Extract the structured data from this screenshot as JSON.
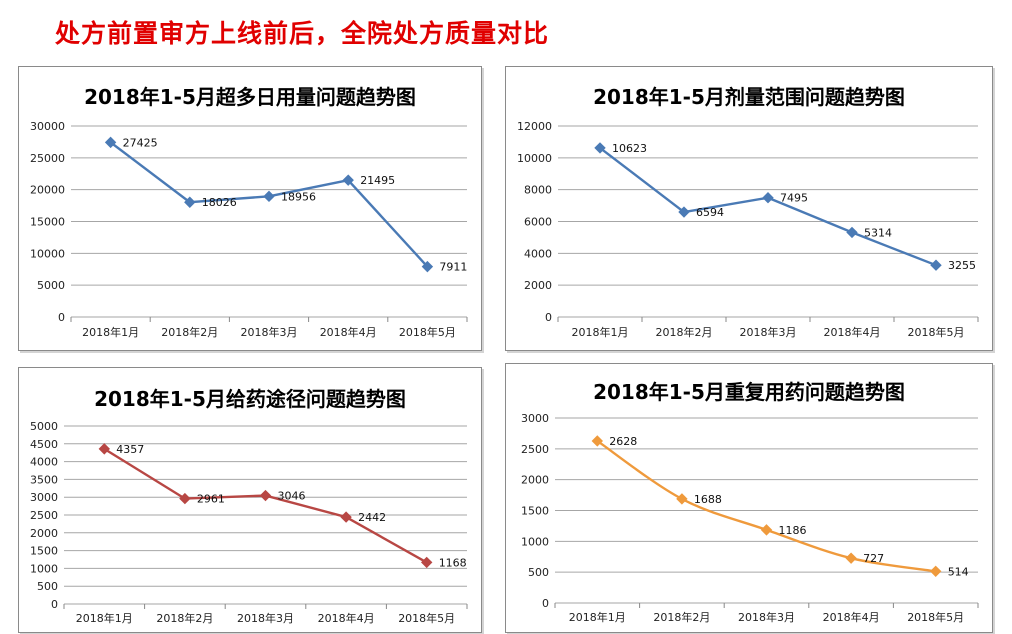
{
  "page": {
    "title": "处方前置审方上线前后，全院处方质量对比"
  },
  "chart_data": [
    {
      "type": "line",
      "title": "2018年1-5月超多日用量问题趋势图",
      "categories": [
        "2018年1月",
        "2018年2月",
        "2018年3月",
        "2018年4月",
        "2018年5月"
      ],
      "values": [
        27425,
        18026,
        18956,
        21495,
        7911
      ],
      "ylim": [
        0,
        30000
      ],
      "yticks": [
        0,
        5000,
        10000,
        15000,
        20000,
        25000,
        30000
      ],
      "color": "#4a7ab5",
      "marker": "diamond",
      "grid": true
    },
    {
      "type": "line",
      "title": "2018年1-5月剂量范围问题趋势图",
      "categories": [
        "2018年1月",
        "2018年2月",
        "2018年3月",
        "2018年4月",
        "2018年5月"
      ],
      "values": [
        10623,
        6594,
        7495,
        5314,
        3255
      ],
      "ylim": [
        0,
        12000
      ],
      "yticks": [
        0,
        2000,
        4000,
        6000,
        8000,
        10000,
        12000
      ],
      "color": "#4a7ab5",
      "marker": "diamond",
      "grid": true
    },
    {
      "type": "line",
      "title": "2018年1-5月给药途径问题趋势图",
      "categories": [
        "2018年1月",
        "2018年2月",
        "2018年3月",
        "2018年4月",
        "2018年5月"
      ],
      "values": [
        4357,
        2961,
        3046,
        2442,
        1168
      ],
      "ylim": [
        0,
        5000
      ],
      "yticks": [
        0,
        500,
        1000,
        1500,
        2000,
        2500,
        3000,
        3500,
        4000,
        4500,
        5000
      ],
      "color": "#b84744",
      "marker": "diamond",
      "grid": true
    },
    {
      "type": "line",
      "title": "2018年1-5月重复用药问题趋势图",
      "categories": [
        "2018年1月",
        "2018年2月",
        "2018年3月",
        "2018年4月",
        "2018年5月"
      ],
      "values": [
        2628,
        1688,
        1186,
        727,
        514
      ],
      "ylim": [
        0,
        3000
      ],
      "yticks": [
        0,
        500,
        1000,
        1500,
        2000,
        2500,
        3000
      ],
      "color": "#ef9a3c",
      "marker": "diamond",
      "smooth": true,
      "grid": true
    }
  ]
}
